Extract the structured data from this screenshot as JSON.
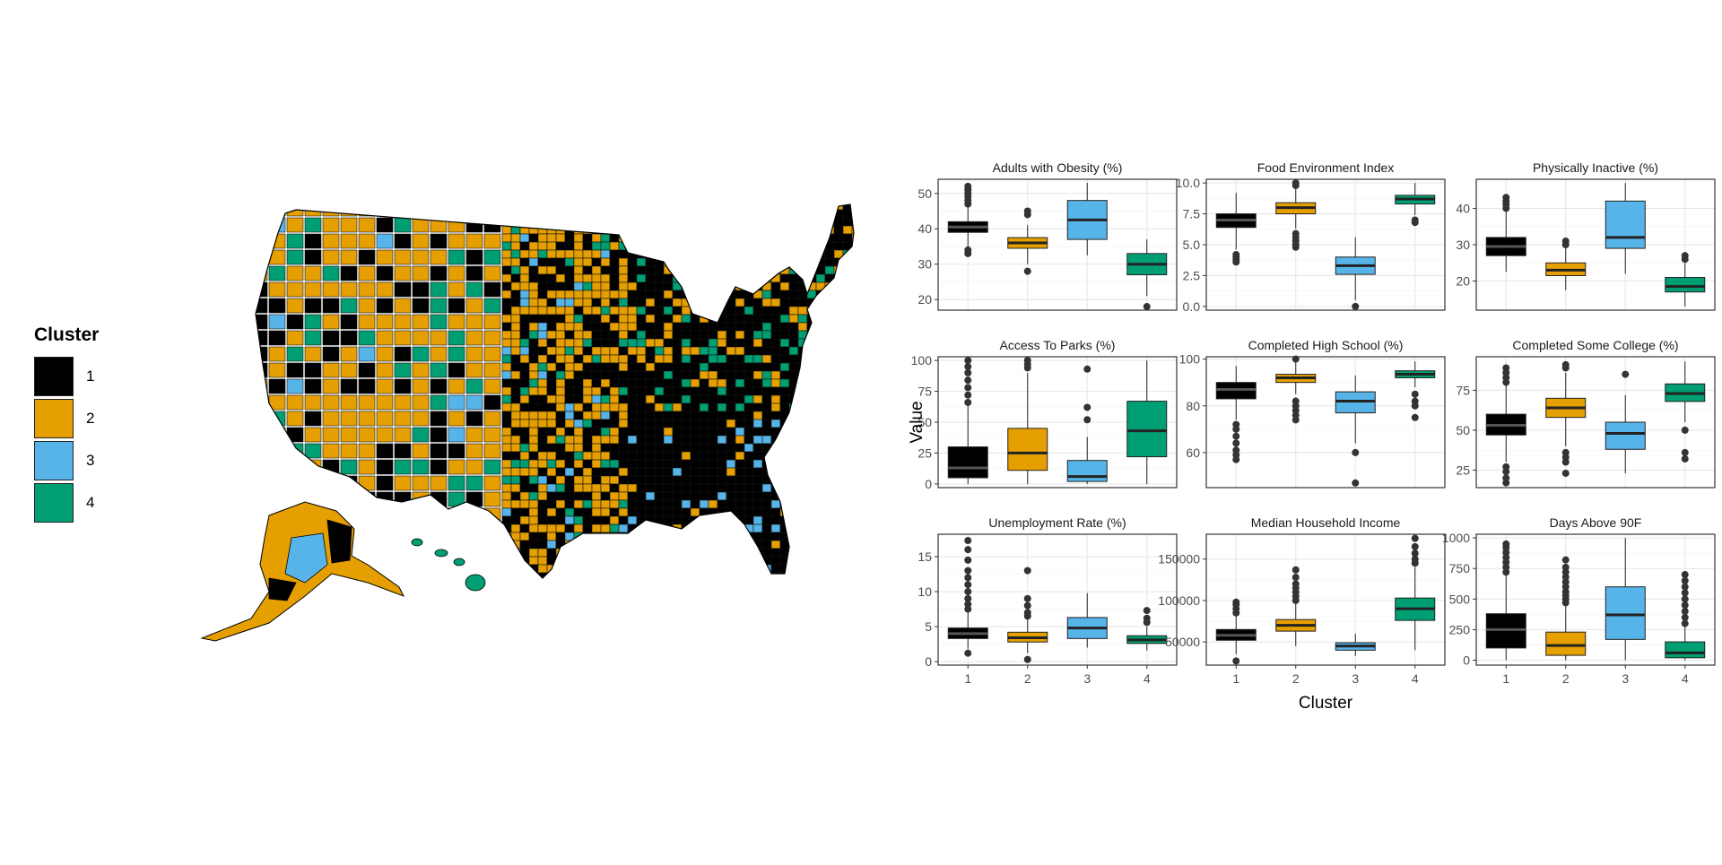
{
  "legend": {
    "title": "Cluster",
    "items": [
      {
        "label": "1",
        "color": "#000000"
      },
      {
        "label": "2",
        "color": "#E69F00"
      },
      {
        "label": "3",
        "color": "#56B4E9"
      },
      {
        "label": "4",
        "color": "#009E73"
      }
    ]
  },
  "map": {
    "description_icon": "us-county-choropleth",
    "colors": [
      "#000000",
      "#E69F00",
      "#56B4E9",
      "#009E73"
    ]
  },
  "chart_data": {
    "type": "boxplot",
    "xlabel": "Cluster",
    "ylabel": "Value",
    "categories": [
      "1",
      "2",
      "3",
      "4"
    ],
    "colors": [
      "#000000",
      "#E69F00",
      "#56B4E9",
      "#009E73"
    ],
    "facets": [
      {
        "title": "Adults with Obesity (%)",
        "ylim": [
          17,
          54
        ],
        "ticks": [
          20,
          30,
          40,
          50
        ],
        "boxes": [
          {
            "q1": 39,
            "median": 40.5,
            "q3": 42,
            "low": 35,
            "high": 46,
            "outliers": [
              33,
              34,
              47,
              48,
              49,
              50,
              51,
              52
            ]
          },
          {
            "q1": 34.5,
            "median": 36,
            "q3": 37.5,
            "low": 30,
            "high": 41,
            "outliers": [
              28,
              44,
              45
            ]
          },
          {
            "q1": 37,
            "median": 42.5,
            "q3": 48,
            "low": 32.5,
            "high": 53,
            "outliers": []
          },
          {
            "q1": 27,
            "median": 30,
            "q3": 33,
            "low": 21,
            "high": 37,
            "outliers": [
              18
            ]
          }
        ]
      },
      {
        "title": "Food Environment Index",
        "ylim": [
          -0.3,
          10.3
        ],
        "ticks": [
          0.0,
          2.5,
          5.0,
          7.5,
          10.0
        ],
        "tick_fmt": "1",
        "boxes": [
          {
            "q1": 6.4,
            "median": 7.0,
            "q3": 7.5,
            "low": 4.6,
            "high": 9.2,
            "outliers": [
              3.6,
              3.8,
              4.0,
              4.2
            ]
          },
          {
            "q1": 7.5,
            "median": 8.0,
            "q3": 8.4,
            "low": 6.3,
            "high": 9.6,
            "outliers": [
              4.8,
              5.0,
              5.3,
              5.6,
              5.9,
              9.8,
              10.0
            ]
          },
          {
            "q1": 2.6,
            "median": 3.3,
            "q3": 4.0,
            "low": 0.5,
            "high": 5.6,
            "outliers": [
              0.0
            ]
          },
          {
            "q1": 8.3,
            "median": 8.7,
            "q3": 9.0,
            "low": 7.4,
            "high": 10.0,
            "outliers": [
              6.8,
              7.0
            ]
          }
        ]
      },
      {
        "title": "Physically Inactive (%)",
        "ylim": [
          12,
          48
        ],
        "ticks": [
          20,
          30,
          40
        ],
        "boxes": [
          {
            "q1": 27,
            "median": 29.5,
            "q3": 32,
            "low": 22.5,
            "high": 39,
            "outliers": [
              40,
              41,
              42,
              43
            ]
          },
          {
            "q1": 21.5,
            "median": 23,
            "q3": 25,
            "low": 17.5,
            "high": 29,
            "outliers": [
              30,
              31
            ]
          },
          {
            "q1": 29,
            "median": 32,
            "q3": 42,
            "low": 22,
            "high": 47,
            "outliers": []
          },
          {
            "q1": 17,
            "median": 18.5,
            "q3": 21,
            "low": 13,
            "high": 25,
            "outliers": [
              26,
              27
            ]
          }
        ]
      },
      {
        "title": "Access To Parks (%)",
        "ylim": [
          -3,
          103
        ],
        "ticks": [
          0,
          25,
          50,
          75,
          100
        ],
        "boxes": [
          {
            "q1": 5,
            "median": 13,
            "q3": 30,
            "low": 0,
            "high": 65,
            "outliers": [
              66,
              72,
              78,
              84,
              90,
              95,
              100
            ]
          },
          {
            "q1": 11,
            "median": 25,
            "q3": 45,
            "low": 0,
            "high": 90,
            "outliers": [
              94,
              97,
              100
            ]
          },
          {
            "q1": 2,
            "median": 6,
            "q3": 19,
            "low": 0,
            "high": 38,
            "outliers": [
              52,
              62,
              93
            ]
          },
          {
            "q1": 22,
            "median": 43,
            "q3": 67,
            "low": 0,
            "high": 100,
            "outliers": []
          }
        ]
      },
      {
        "title": "Completed High School (%)",
        "ylim": [
          45,
          101
        ],
        "ticks": [
          60,
          80,
          100
        ],
        "boxes": [
          {
            "q1": 83,
            "median": 87,
            "q3": 90,
            "low": 74,
            "high": 97,
            "outliers": [
              57,
              59,
              61,
              64,
              67,
              70,
              72
            ]
          },
          {
            "q1": 90,
            "median": 92,
            "q3": 93.5,
            "low": 85,
            "high": 98.5,
            "outliers": [
              74,
              76,
              78,
              80,
              82,
              100
            ]
          },
          {
            "q1": 77,
            "median": 82,
            "q3": 86,
            "low": 64,
            "high": 93,
            "outliers": [
              47,
              60
            ]
          },
          {
            "q1": 92,
            "median": 93.5,
            "q3": 95,
            "low": 88,
            "high": 99,
            "outliers": [
              75,
              80,
              82,
              85
            ]
          }
        ]
      },
      {
        "title": "Completed Some College (%)",
        "ylim": [
          14,
          96
        ],
        "ticks": [
          25,
          50,
          75
        ],
        "boxes": [
          {
            "q1": 47,
            "median": 53,
            "q3": 60,
            "low": 30,
            "high": 78,
            "outliers": [
              17,
              20,
              24,
              27,
              80,
              83,
              86,
              89
            ]
          },
          {
            "q1": 58,
            "median": 64,
            "q3": 70,
            "low": 40,
            "high": 86,
            "outliers": [
              23,
              30,
              33,
              36,
              89,
              91
            ]
          },
          {
            "q1": 38,
            "median": 48,
            "q3": 55,
            "low": 23,
            "high": 72,
            "outliers": [
              85
            ]
          },
          {
            "q1": 68,
            "median": 73,
            "q3": 79,
            "low": 55,
            "high": 93,
            "outliers": [
              32,
              36,
              50
            ]
          }
        ]
      },
      {
        "title": "Unemployment Rate (%)",
        "ylim": [
          -0.5,
          18.2
        ],
        "ticks": [
          0,
          5,
          10,
          15
        ],
        "boxes": [
          {
            "q1": 3.3,
            "median": 4.0,
            "q3": 4.8,
            "low": 1.8,
            "high": 7.0,
            "outliers": [
              1.2,
              7.5,
              8.2,
              9.0,
              10.0,
              11.0,
              12.0,
              13.0,
              14.5,
              16.0,
              17.3
            ]
          },
          {
            "q1": 2.8,
            "median": 3.4,
            "q3": 4.2,
            "low": 1.2,
            "high": 6.0,
            "outliers": [
              0.3,
              6.5,
              7.0,
              8.0,
              9.0,
              13.0
            ]
          },
          {
            "q1": 3.3,
            "median": 4.8,
            "q3": 6.3,
            "low": 2.0,
            "high": 9.8,
            "outliers": []
          },
          {
            "q1": 2.6,
            "median": 3.1,
            "q3": 3.7,
            "low": 1.6,
            "high": 5.0,
            "outliers": [
              5.6,
              6.2,
              7.3
            ]
          }
        ]
      },
      {
        "title": "Median Household Income",
        "ylim": [
          22000,
          180000
        ],
        "ticks": [
          50000,
          100000,
          150000
        ],
        "boxes": [
          {
            "q1": 52000,
            "median": 58000,
            "q3": 65000,
            "low": 35000,
            "high": 82000,
            "outliers": [
              27000,
              85000,
              90000,
              95000,
              98000
            ]
          },
          {
            "q1": 63000,
            "median": 70000,
            "q3": 77000,
            "low": 45000,
            "high": 98000,
            "outliers": [
              100000,
              105000,
              110000,
              115000,
              120000,
              128000,
              137000
            ]
          },
          {
            "q1": 40000,
            "median": 45000,
            "q3": 49000,
            "low": 33000,
            "high": 60000,
            "outliers": []
          },
          {
            "q1": 76000,
            "median": 90000,
            "q3": 103000,
            "low": 40000,
            "high": 140000,
            "outliers": [
              145000,
              150000,
              157000,
              165000,
              175000
            ]
          }
        ]
      },
      {
        "title": "Days Above 90F",
        "ylim": [
          -40,
          1030
        ],
        "ticks": [
          0,
          250,
          500,
          750,
          1000
        ],
        "boxes": [
          {
            "q1": 100,
            "median": 250,
            "q3": 380,
            "low": 0,
            "high": 700,
            "outliers": [
              720,
              760,
              800,
              840,
              880,
              920,
              950
            ]
          },
          {
            "q1": 40,
            "median": 120,
            "q3": 230,
            "low": 0,
            "high": 450,
            "outliers": [
              470,
              500,
              530,
              560,
              600,
              640,
              680,
              720,
              760,
              820
            ]
          },
          {
            "q1": 170,
            "median": 370,
            "q3": 600,
            "low": 0,
            "high": 1000,
            "outliers": []
          },
          {
            "q1": 20,
            "median": 60,
            "q3": 150,
            "low": 0,
            "high": 280,
            "outliers": [
              300,
              350,
              400,
              450,
              500,
              550,
              600,
              650,
              700
            ]
          }
        ]
      }
    ]
  }
}
